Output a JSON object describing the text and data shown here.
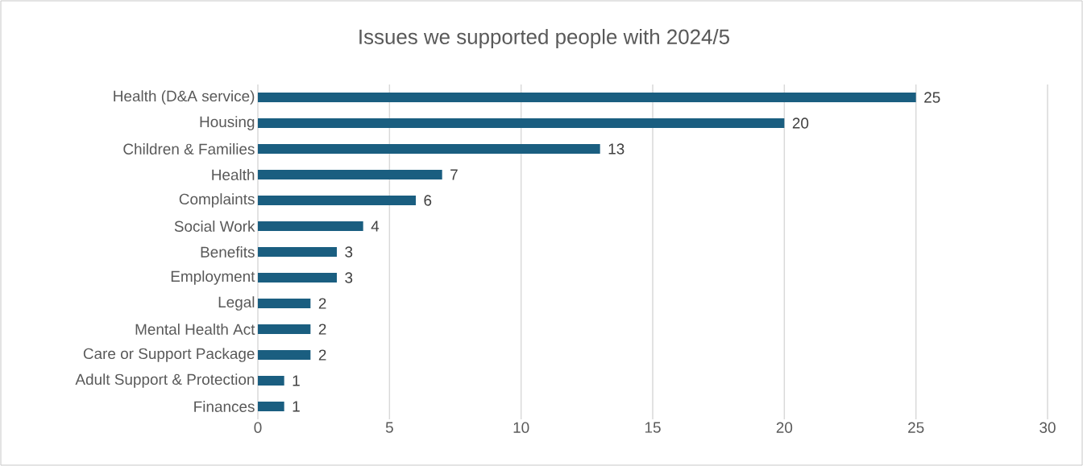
{
  "chart_data": {
    "type": "bar",
    "orientation": "horizontal",
    "title": "Issues we supported people with 2024/5",
    "categories": [
      "Health (D&A service)",
      "Housing",
      "Children & Families",
      "Health",
      "Complaints",
      "Social Work",
      "Benefits",
      "Employment",
      "Legal",
      "Mental Health Act",
      "Care or Support Package",
      "Adult Support & Protection",
      "Finances"
    ],
    "values": [
      25,
      20,
      13,
      7,
      6,
      4,
      3,
      3,
      2,
      2,
      2,
      1,
      1
    ],
    "color": "#1a5e80",
    "xlim": [
      0,
      30
    ],
    "xticks": [
      0,
      5,
      10,
      15,
      20,
      25,
      30
    ],
    "grid": "x",
    "data_labels": true
  }
}
